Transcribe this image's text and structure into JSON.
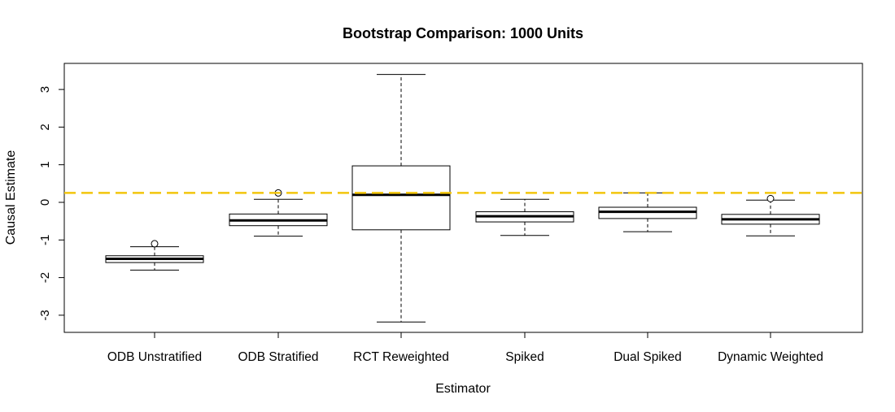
{
  "chart_data": {
    "type": "boxplot",
    "title": "Bootstrap Comparison: 1000 Units",
    "xlabel": "Estimator",
    "ylabel": "Causal Estimate",
    "ylim": [
      -3.45,
      3.7
    ],
    "yticks": [
      -3,
      -2,
      -1,
      0,
      1,
      2,
      3
    ],
    "categories": [
      "ODB Unstratified",
      "ODB Stratified",
      "RCT Reweighted",
      "Spiked",
      "Dual Spiked",
      "Dynamic Weighted"
    ],
    "boxes": [
      {
        "whisker_low": -1.8,
        "q1": -1.6,
        "median": -1.5,
        "q3": -1.42,
        "whisker_high": -1.18,
        "outliers": [
          -1.1
        ]
      },
      {
        "whisker_low": -0.9,
        "q1": -0.62,
        "median": -0.48,
        "q3": -0.31,
        "whisker_high": 0.08,
        "outliers": [
          0.25
        ]
      },
      {
        "whisker_low": -3.18,
        "q1": -0.73,
        "median": 0.2,
        "q3": 0.97,
        "whisker_high": 3.4,
        "outliers": []
      },
      {
        "whisker_low": -0.88,
        "q1": -0.52,
        "median": -0.37,
        "q3": -0.25,
        "whisker_high": 0.08,
        "outliers": []
      },
      {
        "whisker_low": -0.78,
        "q1": -0.43,
        "median": -0.25,
        "q3": -0.13,
        "whisker_high": 0.25,
        "outliers": []
      },
      {
        "whisker_low": -0.89,
        "q1": -0.58,
        "median": -0.45,
        "q3": -0.32,
        "whisker_high": 0.06,
        "outliers": [
          0.1
        ]
      }
    ],
    "reference_line": {
      "y": 0.25,
      "color": "#f2c50c",
      "style": "dashed"
    },
    "grid": false,
    "legend": "none"
  }
}
